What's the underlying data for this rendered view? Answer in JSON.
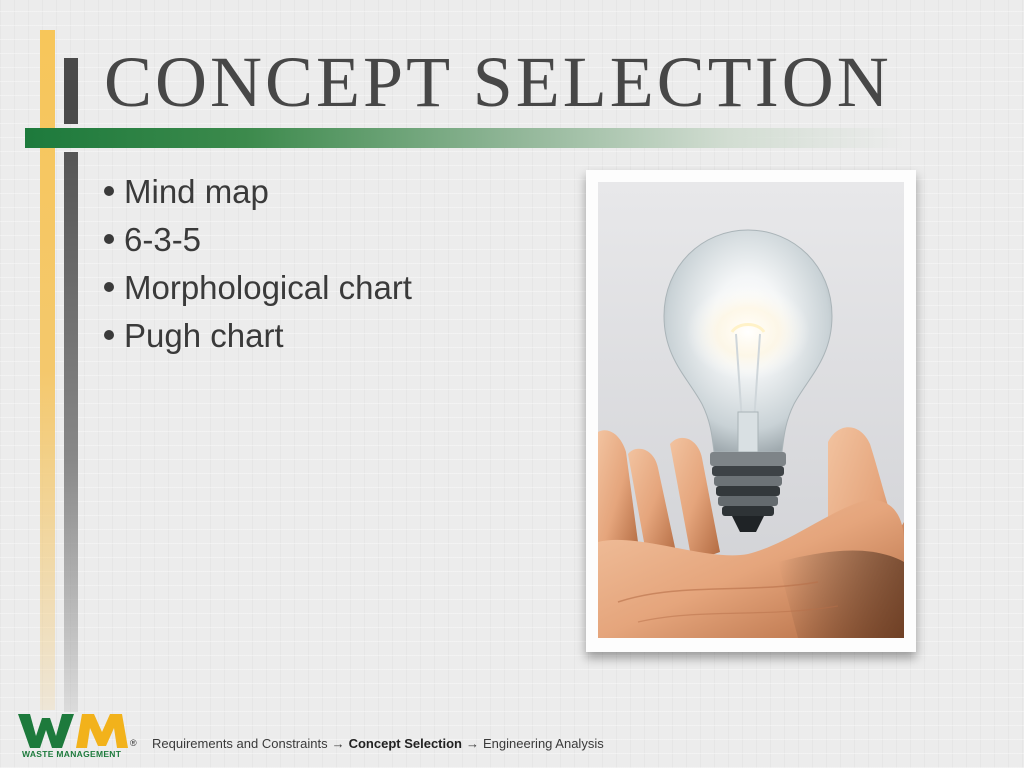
{
  "slide": {
    "title": "CONCEPT SELECTION"
  },
  "bullets": [
    "Mind map",
    "6-3-5",
    "Morphological chart",
    "Pugh chart"
  ],
  "logo": {
    "letters": "WM",
    "name": "WASTE MANAGEMENT",
    "mark": "®",
    "icon": "wm-logo-icon"
  },
  "breadcrumb": {
    "items": [
      "Requirements and Constraints",
      "Concept Selection",
      "Engineering Analysis"
    ],
    "separator": "→",
    "current_index": 1
  },
  "image": {
    "icon": "lightbulb-in-hand-photo"
  },
  "colors": {
    "accent_green": "#1d7a3c",
    "accent_yellow": "#f7c65a",
    "text": "#3a3a3a"
  }
}
